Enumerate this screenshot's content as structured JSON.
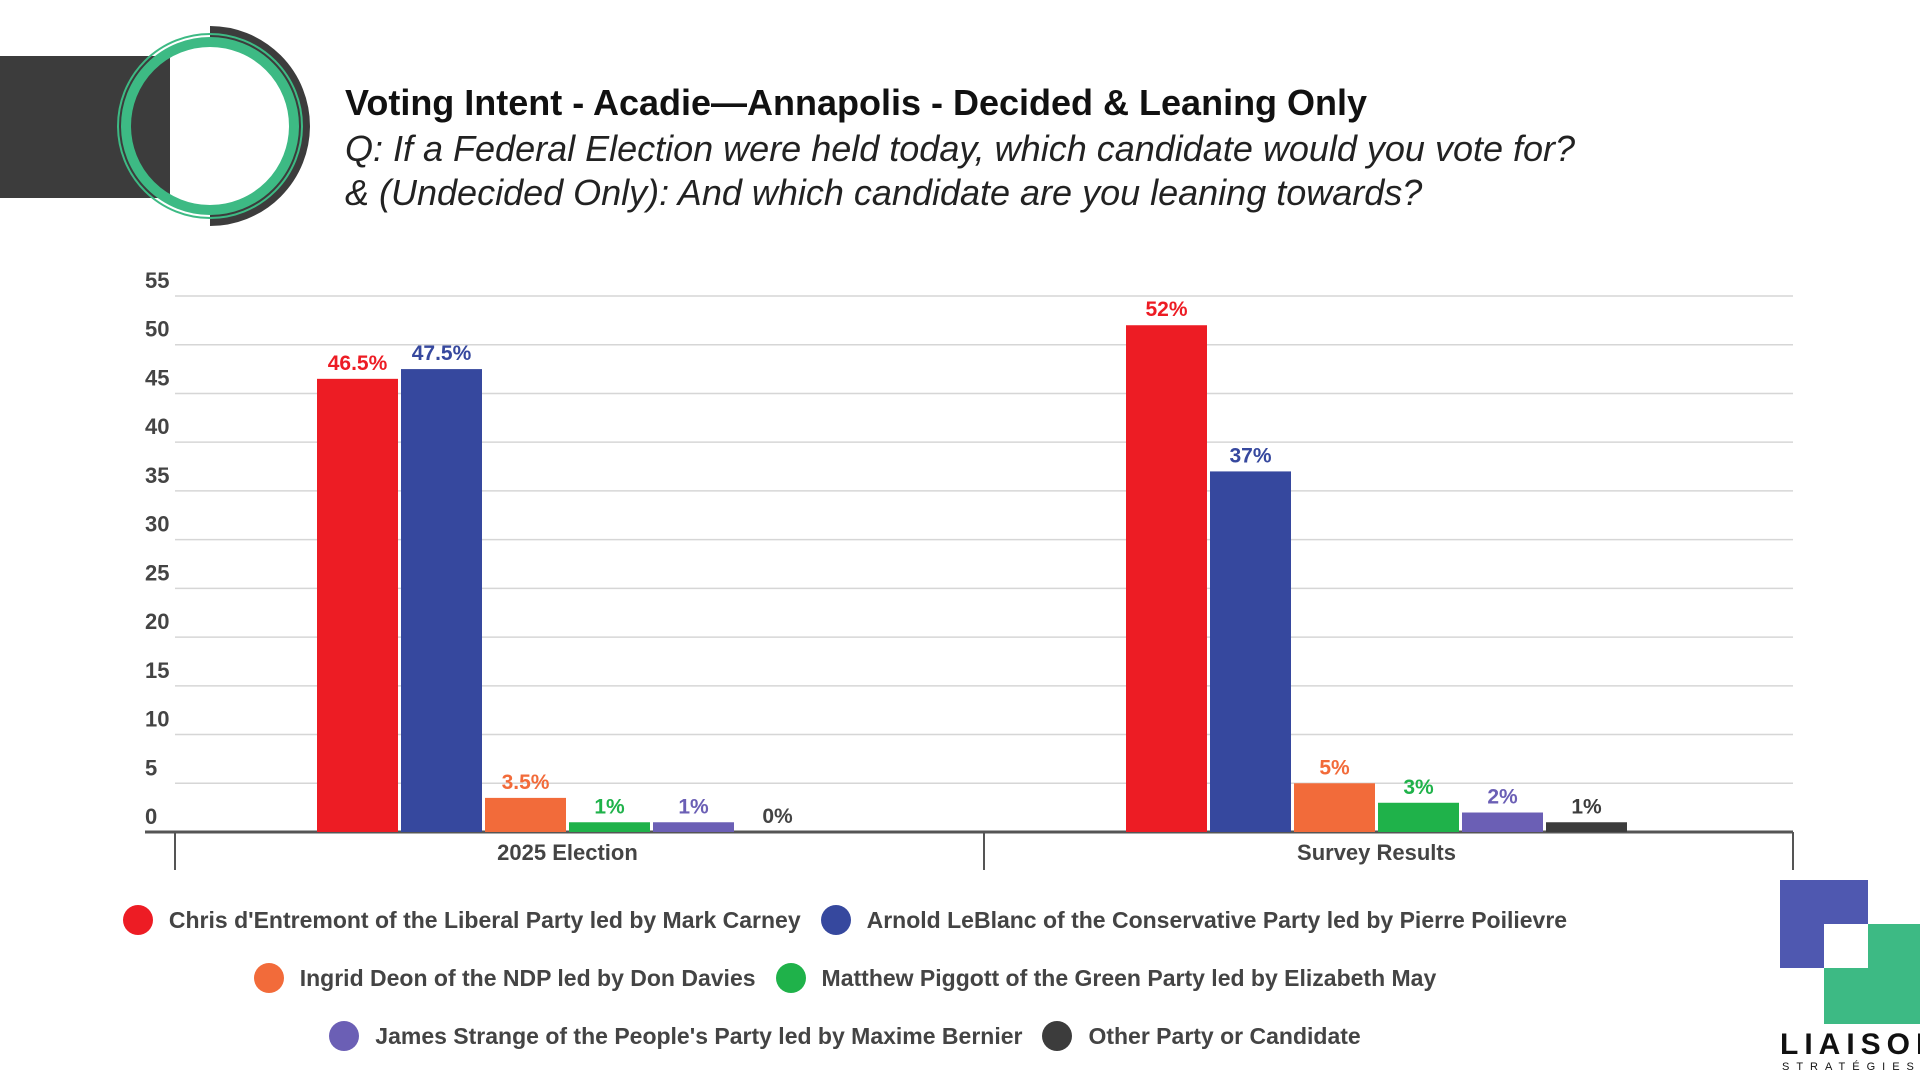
{
  "header": {
    "title": "Voting Intent - Acadie—Annapolis - Decided & Leaning Only",
    "subtitle_line1": "Q: If a Federal Election were held today, which candidate would you vote for?",
    "subtitle_line2": "& (Undecided Only): And which candidate are you leaning towards?"
  },
  "brand": {
    "name": "LIAISON",
    "sub": "STRATÉGIES"
  },
  "colors": {
    "accent_green": "#3dba84",
    "dark": "#3c3c3c",
    "brand_blue": "#4f58b0"
  },
  "chart_data": {
    "type": "bar",
    "categories": [
      "2025 Election",
      "Survey Results"
    ],
    "ylim": [
      0,
      55
    ],
    "yticks": [
      0,
      5,
      10,
      15,
      20,
      25,
      30,
      35,
      40,
      45,
      50,
      55
    ],
    "grid": true,
    "legend_position": "bottom",
    "series": [
      {
        "name": "Chris d'Entremont of the Liberal Party led by Mark Carney",
        "color": "#ed1c24",
        "values": [
          46.5,
          52
        ],
        "labels": [
          "46.5%",
          "52%"
        ]
      },
      {
        "name": "Arnold LeBlanc of the Conservative Party led by Pierre Poilievre",
        "color": "#36489e",
        "values": [
          47.5,
          37
        ],
        "labels": [
          "47.5%",
          "37%"
        ]
      },
      {
        "name": "Ingrid Deon of the NDP led by Don Davies",
        "color": "#f26b3a",
        "values": [
          3.5,
          5
        ],
        "labels": [
          "3.5%",
          "5%"
        ]
      },
      {
        "name": "Matthew Piggott of the Green Party led by Elizabeth May",
        "color": "#1fb24a",
        "values": [
          1,
          3
        ],
        "labels": [
          "1%",
          "3%"
        ]
      },
      {
        "name": "James Strange of the People's Party led by Maxime Bernier",
        "color": "#6b5fb5",
        "values": [
          1,
          2
        ],
        "labels": [
          "1%",
          "2%"
        ]
      },
      {
        "name": "Other Party or Candidate",
        "color": "#3c3c3c",
        "values": [
          0,
          1
        ],
        "labels": [
          "0%",
          "1%"
        ]
      }
    ]
  }
}
